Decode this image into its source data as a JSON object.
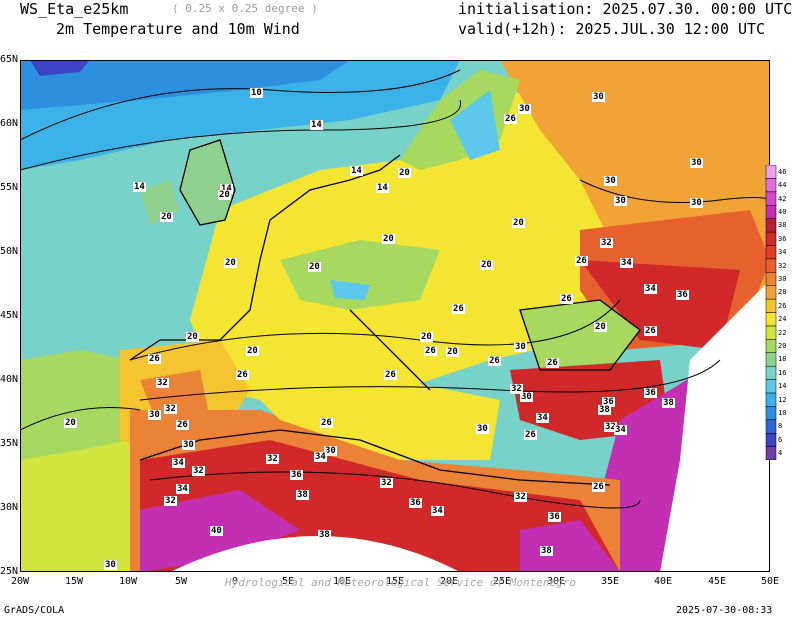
{
  "header": {
    "model": "WS_Eta_e25km",
    "resolution": "( 0.25 x 0.25 degree )",
    "variable": "2m Temperature and 10m Wind",
    "initialisation": "initialisation: 2025.07.30. 00:00 UTC",
    "valid": "valid(+12h): 2025.JUL.30 12:00 UTC"
  },
  "footer": {
    "left": "GrADS/COLA",
    "right": "2025-07-30-08:33"
  },
  "watermark": "Hydrological and Meteorological Service of Montenegro",
  "axes": {
    "lat_labels": [
      "65N",
      "60N",
      "55N",
      "50N",
      "45N",
      "40N",
      "35N",
      "30N",
      "25N"
    ],
    "lon_labels": [
      "20W",
      "15W",
      "10W",
      "5W",
      "0",
      "5E",
      "10E",
      "15E",
      "20E",
      "25E",
      "30E",
      "35E",
      "40E",
      "45E",
      "50E"
    ]
  },
  "colorbar": {
    "labels": [
      "4",
      "6",
      "8",
      "10",
      "12",
      "14",
      "16",
      "18",
      "20",
      "22",
      "24",
      "26",
      "28",
      "30",
      "32",
      "34",
      "36",
      "38",
      "40",
      "42",
      "44",
      "46"
    ],
    "colors": [
      "#6c3fa6",
      "#3c43c4",
      "#2f64d6",
      "#2d8fe0",
      "#3bb2e8",
      "#5cc8ea",
      "#77d2c9",
      "#8fd28d",
      "#a7d860",
      "#d2e53e",
      "#f3e532",
      "#f5c531",
      "#f2a335",
      "#ec8235",
      "#e6612e",
      "#e03c27",
      "#d1282a",
      "#b51f3c",
      "#c22fb3",
      "#d746cd",
      "#e36fdd",
      "#ee9fea"
    ]
  },
  "contour_labels": [
    {
      "text": "10"
    },
    {
      "text": "14"
    },
    {
      "text": "14"
    },
    {
      "text": "14"
    },
    {
      "text": "14"
    },
    {
      "text": "14"
    },
    {
      "text": "20"
    },
    {
      "text": "20"
    },
    {
      "text": "20"
    },
    {
      "text": "20"
    },
    {
      "text": "20"
    },
    {
      "text": "20"
    },
    {
      "text": "20"
    },
    {
      "text": "20"
    },
    {
      "text": "20"
    },
    {
      "text": "20"
    },
    {
      "text": "20"
    },
    {
      "text": "20"
    },
    {
      "text": "20"
    },
    {
      "text": "20"
    },
    {
      "text": "26"
    },
    {
      "text": "26"
    },
    {
      "text": "26"
    },
    {
      "text": "26"
    },
    {
      "text": "26"
    },
    {
      "text": "26"
    },
    {
      "text": "26"
    },
    {
      "text": "26"
    },
    {
      "text": "26"
    },
    {
      "text": "26"
    },
    {
      "text": "26"
    },
    {
      "text": "26"
    },
    {
      "text": "26"
    },
    {
      "text": "26"
    },
    {
      "text": "26"
    },
    {
      "text": "30"
    },
    {
      "text": "30"
    },
    {
      "text": "30"
    },
    {
      "text": "30"
    },
    {
      "text": "30"
    },
    {
      "text": "30"
    },
    {
      "text": "30"
    },
    {
      "text": "30"
    },
    {
      "text": "30"
    },
    {
      "text": "30"
    },
    {
      "text": "30"
    },
    {
      "text": "30"
    },
    {
      "text": "30"
    },
    {
      "text": "32"
    },
    {
      "text": "32"
    },
    {
      "text": "32"
    },
    {
      "text": "32"
    },
    {
      "text": "32"
    },
    {
      "text": "32"
    },
    {
      "text": "32"
    },
    {
      "text": "32"
    },
    {
      "text": "32"
    },
    {
      "text": "32"
    },
    {
      "text": "34"
    },
    {
      "text": "34"
    },
    {
      "text": "34"
    },
    {
      "text": "34"
    },
    {
      "text": "34"
    },
    {
      "text": "34"
    },
    {
      "text": "34"
    },
    {
      "text": "34"
    },
    {
      "text": "36"
    },
    {
      "text": "36"
    },
    {
      "text": "36"
    },
    {
      "text": "36"
    },
    {
      "text": "36"
    },
    {
      "text": "36"
    },
    {
      "text": "38"
    },
    {
      "text": "38"
    },
    {
      "text": "38"
    },
    {
      "text": "38"
    },
    {
      "text": "38"
    },
    {
      "text": "40"
    }
  ]
}
